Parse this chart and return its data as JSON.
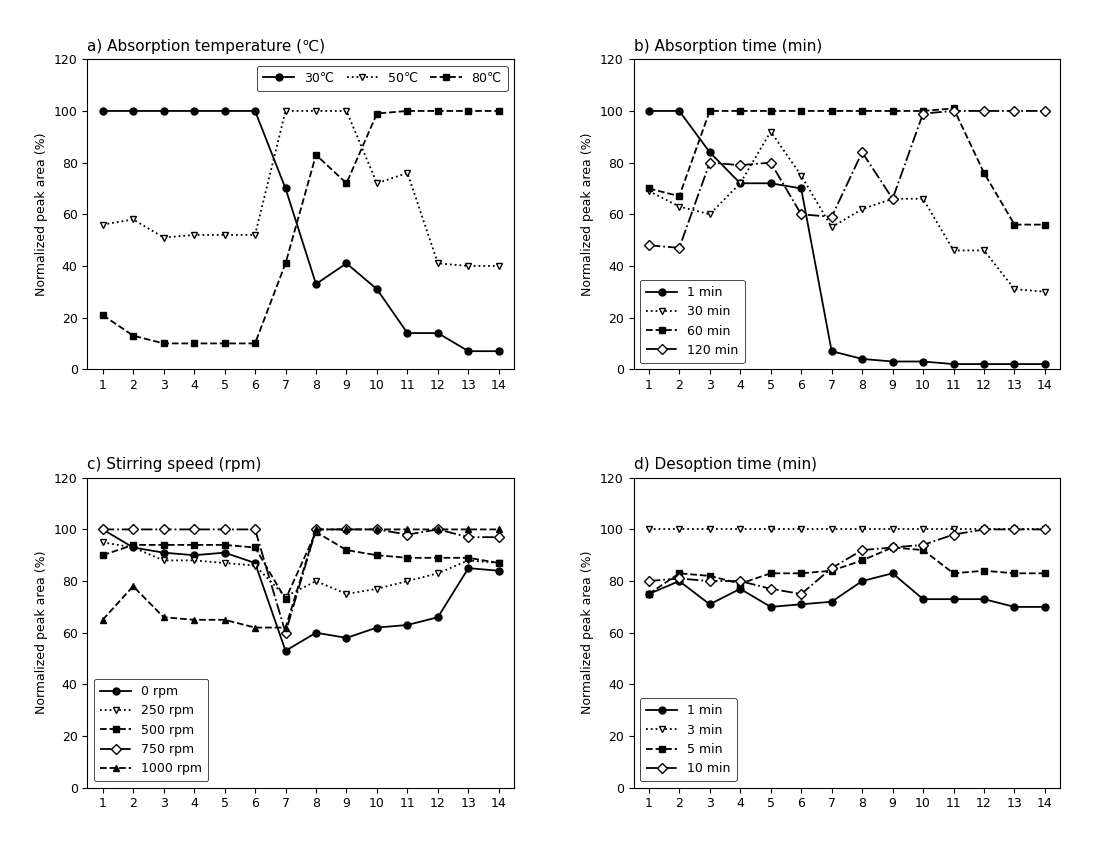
{
  "x": [
    1,
    2,
    3,
    4,
    5,
    6,
    7,
    8,
    9,
    10,
    11,
    12,
    13,
    14
  ],
  "panel_a": {
    "title": "a) Absorption temperature (℃)",
    "legend_loc": "upper right",
    "legend_ncol": 3,
    "series": [
      {
        "label": "30℃",
        "linestyle": "-",
        "marker": "o",
        "filled": true,
        "values": [
          100,
          100,
          100,
          100,
          100,
          100,
          70,
          33,
          41,
          31,
          14,
          14,
          7,
          7
        ]
      },
      {
        "label": "50℃",
        "linestyle": ":",
        "marker": "v",
        "filled": false,
        "values": [
          56,
          58,
          51,
          52,
          52,
          52,
          100,
          100,
          100,
          72,
          76,
          41,
          40,
          40
        ]
      },
      {
        "label": "80℃",
        "linestyle": "--",
        "marker": "s",
        "filled": true,
        "values": [
          21,
          13,
          10,
          10,
          10,
          10,
          41,
          83,
          72,
          99,
          100,
          100,
          100,
          100
        ]
      }
    ]
  },
  "panel_b": {
    "title": "b) Absorption time (min)",
    "legend_loc": "lower left",
    "legend_ncol": 1,
    "series": [
      {
        "label": "1 min",
        "linestyle": "-",
        "marker": "o",
        "filled": true,
        "values": [
          100,
          100,
          84,
          72,
          72,
          70,
          7,
          4,
          3,
          3,
          2,
          2,
          2,
          2
        ]
      },
      {
        "label": "30 min",
        "linestyle": ":",
        "marker": "v",
        "filled": false,
        "values": [
          69,
          63,
          60,
          72,
          92,
          75,
          55,
          62,
          66,
          66,
          46,
          46,
          31,
          30
        ]
      },
      {
        "label": "60 min",
        "linestyle": "--",
        "marker": "s",
        "filled": true,
        "values": [
          70,
          67,
          100,
          100,
          100,
          100,
          100,
          100,
          100,
          100,
          101,
          76,
          56,
          56
        ]
      },
      {
        "label": "120 min",
        "linestyle": "-.",
        "marker": "D",
        "filled": false,
        "values": [
          48,
          47,
          80,
          79,
          80,
          60,
          59,
          84,
          66,
          99,
          100,
          100,
          100,
          100
        ]
      }
    ]
  },
  "panel_c": {
    "title": "c) Stirring speed (rpm)",
    "legend_loc": "lower left",
    "legend_ncol": 1,
    "series": [
      {
        "label": "0 rpm",
        "linestyle": "-",
        "marker": "o",
        "filled": true,
        "values": [
          100,
          93,
          91,
          90,
          91,
          87,
          53,
          60,
          58,
          62,
          63,
          66,
          85,
          84
        ]
      },
      {
        "label": "250 rpm",
        "linestyle": ":",
        "marker": "v",
        "filled": false,
        "values": [
          95,
          93,
          88,
          88,
          87,
          86,
          74,
          80,
          75,
          77,
          80,
          83,
          88,
          87
        ]
      },
      {
        "label": "500 rpm",
        "linestyle": "--",
        "marker": "s",
        "filled": true,
        "values": [
          90,
          94,
          94,
          94,
          94,
          93,
          73,
          99,
          92,
          90,
          89,
          89,
          89,
          87
        ]
      },
      {
        "label": "750 rpm",
        "linestyle": "-.",
        "marker": "D",
        "filled": false,
        "values": [
          100,
          100,
          100,
          100,
          100,
          100,
          60,
          100,
          100,
          100,
          98,
          100,
          97,
          97
        ]
      },
      {
        "label": "1000 rpm",
        "linestyle": "--",
        "marker": "^",
        "filled": true,
        "values": [
          65,
          78,
          66,
          65,
          65,
          62,
          62,
          100,
          100,
          100,
          100,
          100,
          100,
          100
        ]
      }
    ]
  },
  "panel_d": {
    "title": "d) Desoption time (min)",
    "legend_loc": "lower left",
    "legend_ncol": 1,
    "series": [
      {
        "label": "1 min",
        "linestyle": "-",
        "marker": "o",
        "filled": true,
        "values": [
          75,
          80,
          71,
          77,
          70,
          71,
          72,
          80,
          83,
          73,
          73,
          73,
          70,
          70
        ]
      },
      {
        "label": "3 min",
        "linestyle": ":",
        "marker": "v",
        "filled": false,
        "values": [
          100,
          100,
          100,
          100,
          100,
          100,
          100,
          100,
          100,
          100,
          100,
          100,
          100,
          100
        ]
      },
      {
        "label": "5 min",
        "linestyle": "--",
        "marker": "s",
        "filled": true,
        "values": [
          75,
          83,
          82,
          79,
          83,
          83,
          84,
          88,
          93,
          92,
          83,
          84,
          83,
          83
        ]
      },
      {
        "label": "10 min",
        "linestyle": "-.",
        "marker": "D",
        "filled": false,
        "values": [
          80,
          81,
          80,
          80,
          77,
          75,
          85,
          92,
          93,
          94,
          98,
          100,
          100,
          100
        ]
      }
    ]
  },
  "ylabel": "Normalized peak area (%)",
  "ylim": [
    0,
    120
  ],
  "yticks": [
    0,
    20,
    40,
    60,
    80,
    100,
    120
  ],
  "xlim": [
    0.5,
    14.5
  ],
  "xticks": [
    1,
    2,
    3,
    4,
    5,
    6,
    7,
    8,
    9,
    10,
    11,
    12,
    13,
    14
  ],
  "markersize": 5,
  "linewidth": 1.3,
  "title_fontsize": 11,
  "label_fontsize": 9,
  "tick_fontsize": 9,
  "legend_fontsize": 9
}
